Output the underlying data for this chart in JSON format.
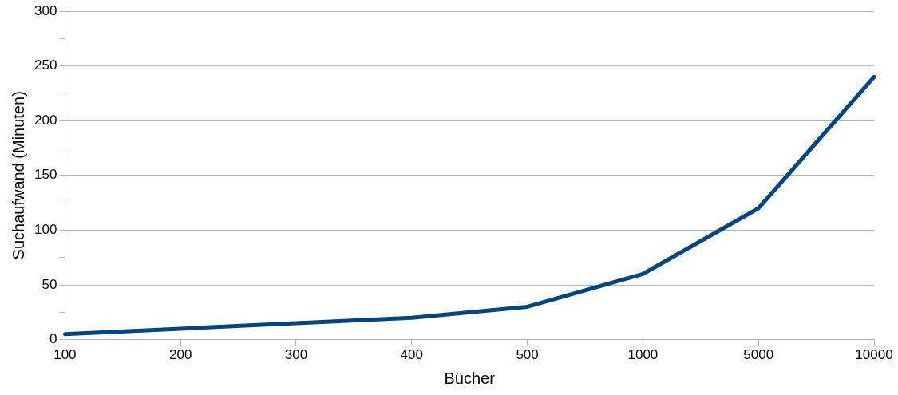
{
  "chart_data": {
    "type": "line",
    "xlabel": "Bücher",
    "ylabel": "Suchaufwand (Minuten)",
    "categories": [
      "100",
      "200",
      "300",
      "400",
      "500",
      "1000",
      "5000",
      "10000"
    ],
    "series": [
      {
        "color": "#004586",
        "values": [
          5,
          10,
          15,
          20,
          30,
          60,
          120,
          240
        ]
      }
    ],
    "ylim": [
      0,
      300
    ],
    "yticks": [
      0,
      {
        "value": 25,
        "label": null
      },
      50,
      {
        "value": 75,
        "label": null
      },
      100,
      {
        "value": 125,
        "label": null
      },
      150,
      {
        "value": 175,
        "label": null
      },
      200,
      {
        "value": 225,
        "label": null
      },
      250,
      {
        "value": 275,
        "label": null
      },
      300
    ],
    "grid": "y",
    "legend": false,
    "marker": "none",
    "line_style": "solid"
  }
}
